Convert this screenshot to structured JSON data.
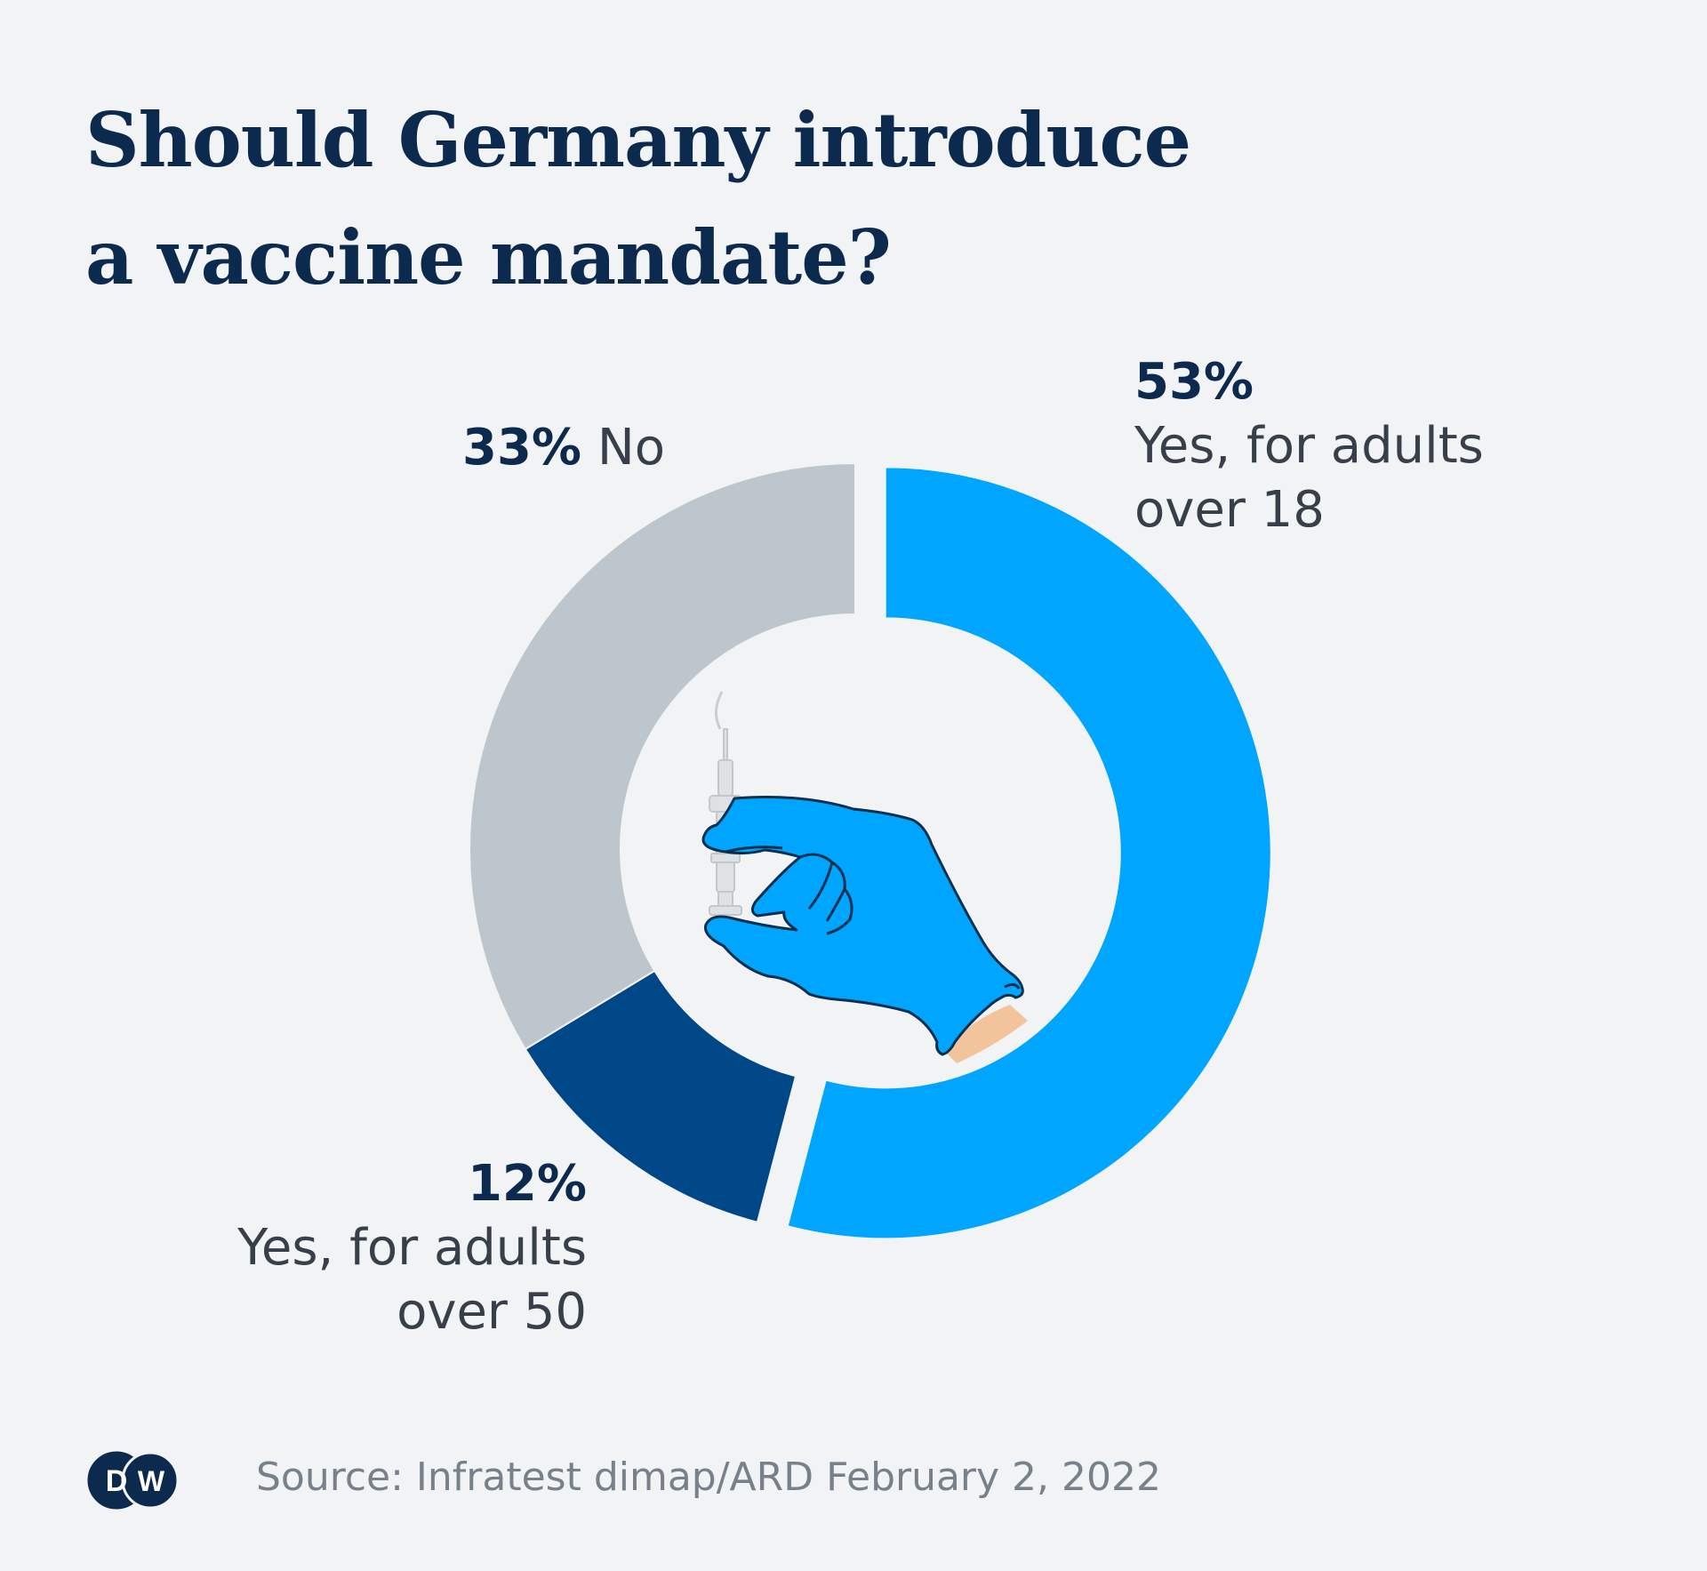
{
  "title_lines": [
    "Should Germany introduce",
    "a vaccine mandate?"
  ],
  "labels": {
    "no": {
      "pct": "33%",
      "text": "No"
    },
    "yes18": {
      "pct": "53%",
      "text_lines": [
        "Yes, for adults",
        "over 18"
      ]
    },
    "yes50": {
      "pct": "12%",
      "text_lines": [
        "Yes, for adults",
        "over 50"
      ]
    }
  },
  "source": "Source: Infratest dimap/ARD February 2, 2022",
  "logo": {
    "text": "DW",
    "icon": "dw-logo"
  },
  "illustration": {
    "icon": "gloved-hand-syringe-icon"
  },
  "colors": {
    "yes18": "#00a5ff",
    "yes50": "#004787",
    "no": "#bec6cd",
    "background": "#f1f3f5",
    "title": "#0c2a4d"
  },
  "chart_data": {
    "type": "pie",
    "variant": "donut",
    "title": "Should Germany introduce a vaccine mandate?",
    "slices": [
      {
        "label": "Yes, for adults over 18",
        "value": 53,
        "color": "#00a5ff",
        "exploded": true
      },
      {
        "label": "Yes, for adults over 50",
        "value": 12,
        "color": "#004787"
      },
      {
        "label": "No",
        "value": 33,
        "color": "#bec6cd"
      }
    ],
    "unit": "%",
    "start_angle": "12 o'clock",
    "direction": "clockwise"
  }
}
